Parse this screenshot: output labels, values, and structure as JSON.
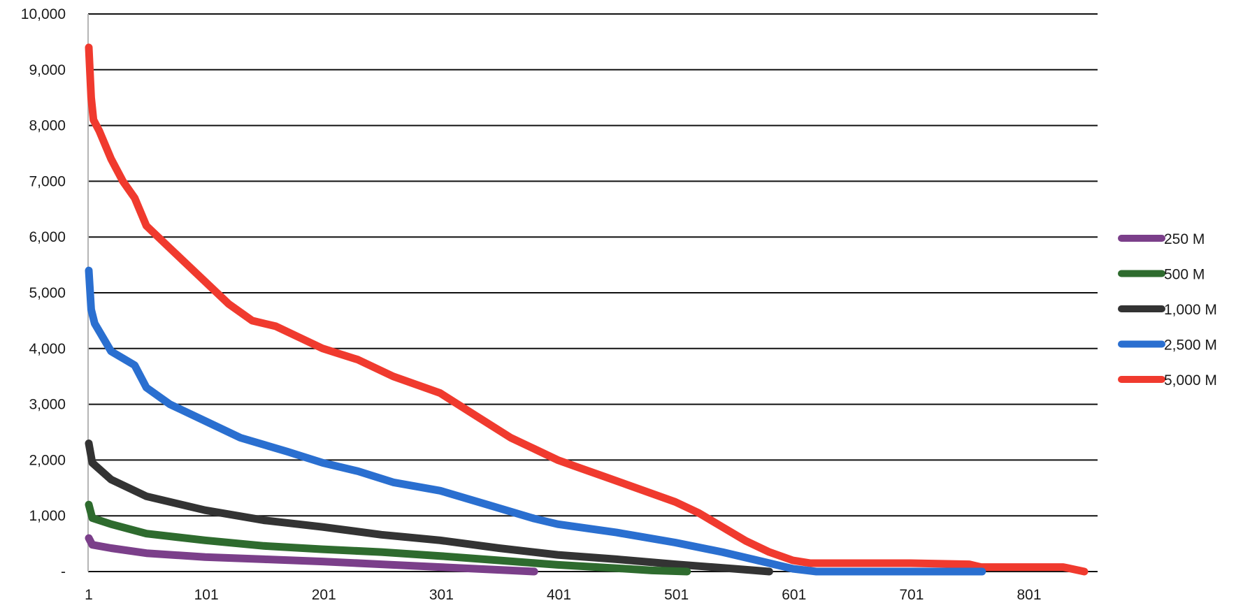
{
  "chart_data": {
    "type": "line",
    "title": "",
    "xlabel": "",
    "ylabel": "",
    "xlim": [
      1,
      851
    ],
    "ylim": [
      0,
      10000
    ],
    "x_ticks": [
      1,
      101,
      201,
      301,
      401,
      501,
      601,
      701,
      801
    ],
    "x_tick_labels": [
      "1",
      "101",
      "201",
      "301",
      "401",
      "501",
      "601",
      "701",
      "801"
    ],
    "y_ticks": [
      0,
      1000,
      2000,
      3000,
      4000,
      5000,
      6000,
      7000,
      8000,
      9000,
      10000
    ],
    "y_tick_labels": [
      "-",
      "1,000",
      "2,000",
      "3,000",
      "4,000",
      "5,000",
      "6,000",
      "7,000",
      "8,000",
      "9,000",
      "10,000"
    ],
    "grid": "horizontal",
    "legend_position": "right",
    "series": [
      {
        "name": "250 M",
        "color": "#7b3f8a",
        "x": [
          1,
          4,
          20,
          50,
          100,
          150,
          200,
          250,
          300,
          330,
          360,
          380
        ],
        "y": [
          600,
          480,
          420,
          330,
          260,
          220,
          180,
          130,
          80,
          50,
          20,
          0
        ]
      },
      {
        "name": "500 M",
        "color": "#2e6b2e",
        "x": [
          1,
          4,
          20,
          50,
          100,
          150,
          200,
          250,
          300,
          350,
          400,
          450,
          480,
          510
        ],
        "y": [
          1200,
          960,
          850,
          680,
          560,
          460,
          400,
          350,
          280,
          200,
          120,
          60,
          20,
          0
        ]
      },
      {
        "name": "1,000 M",
        "color": "#333333",
        "x": [
          1,
          4,
          20,
          50,
          100,
          150,
          200,
          250,
          300,
          350,
          400,
          450,
          500,
          550,
          580
        ],
        "y": [
          2300,
          1950,
          1650,
          1350,
          1100,
          920,
          800,
          660,
          560,
          420,
          300,
          220,
          130,
          50,
          0
        ]
      },
      {
        "name": "2,500 M",
        "color": "#2a6fd0",
        "x": [
          1,
          3,
          6,
          20,
          40,
          50,
          70,
          100,
          130,
          170,
          200,
          230,
          260,
          300,
          340,
          380,
          400,
          450,
          500,
          540,
          570,
          600,
          620,
          660,
          700,
          761
        ],
        "y": [
          5400,
          4700,
          4450,
          3950,
          3700,
          3300,
          3000,
          2700,
          2400,
          2150,
          1950,
          1800,
          1600,
          1450,
          1200,
          950,
          850,
          700,
          520,
          350,
          200,
          50,
          0,
          0,
          0,
          0
        ]
      },
      {
        "name": "5,000 M",
        "color": "#f03a2e",
        "x": [
          1,
          3,
          5,
          10,
          20,
          30,
          40,
          50,
          60,
          70,
          80,
          100,
          120,
          140,
          160,
          180,
          200,
          230,
          260,
          300,
          330,
          360,
          380,
          400,
          420,
          440,
          460,
          480,
          500,
          520,
          540,
          560,
          580,
          600,
          615,
          650,
          700,
          750,
          760,
          800,
          830,
          848
        ],
        "y": [
          9400,
          8500,
          8100,
          7900,
          7400,
          7000,
          6700,
          6200,
          6000,
          5800,
          5600,
          5200,
          4800,
          4500,
          4400,
          4200,
          4000,
          3800,
          3500,
          3200,
          2800,
          2400,
          2200,
          2000,
          1850,
          1700,
          1550,
          1400,
          1250,
          1050,
          800,
          550,
          350,
          200,
          150,
          150,
          150,
          130,
          80,
          80,
          80,
          0
        ]
      }
    ]
  }
}
